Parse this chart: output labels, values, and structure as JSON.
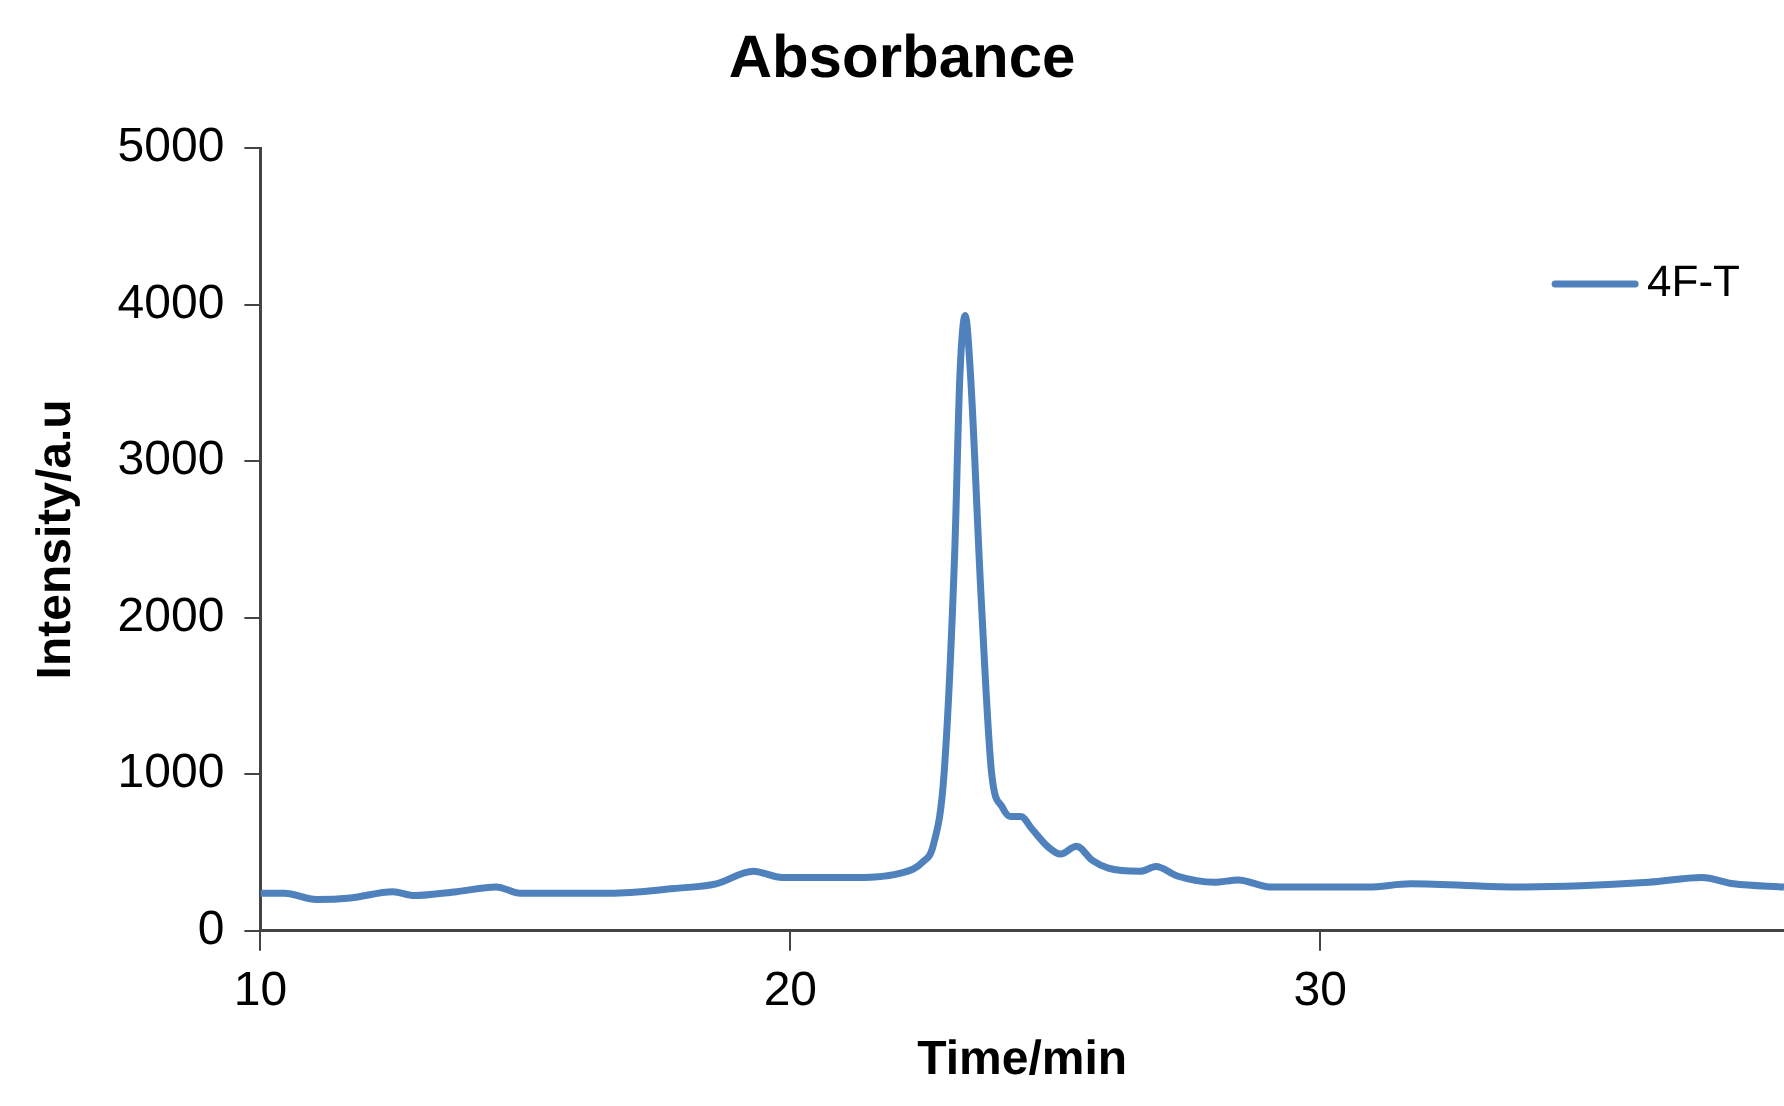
{
  "chart_data": {
    "type": "line",
    "title": "Absorbance",
    "xlabel": "Time/min",
    "ylabel": "Intensity/a.u",
    "xlim": [
      10,
      38.75
    ],
    "xticks": [
      10,
      20,
      30
    ],
    "ylim": [
      0,
      5000
    ],
    "yticks": [
      0,
      1000,
      2000,
      3000,
      4000,
      5000
    ],
    "grid": false,
    "legend": "top right",
    "marker": "none",
    "line_style": "solid",
    "series": [
      {
        "name": "4F-T",
        "color": "#4f81bd",
        "x": [
          10,
          10.45,
          11.06,
          11.7,
          12.5,
          12.9,
          13.7,
          14.45,
          14.9,
          16.6,
          17.8,
          18.6,
          19.3,
          19.85,
          21.1,
          22.1,
          22.5,
          22.7,
          22.9,
          23.1,
          23.2,
          23.3,
          23.4,
          23.6,
          23.8,
          24.0,
          24.15,
          24.35,
          24.56,
          24.85,
          25.1,
          25.4,
          25.7,
          26.0,
          26.6,
          26.9,
          27.3,
          28.0,
          28.45,
          29.05,
          30.9,
          31.7,
          33.8,
          36.2,
          37.2,
          37.8,
          38.75
        ],
        "values": [
          240,
          240,
          200,
          210,
          250,
          225,
          250,
          280,
          240,
          240,
          270,
          300,
          380,
          340,
          340,
          370,
          440,
          550,
          1000,
          2400,
          3550,
          3930,
          3550,
          2130,
          1000,
          790,
          730,
          730,
          650,
          540,
          490,
          540,
          450,
          400,
          380,
          410,
          350,
          310,
          325,
          280,
          280,
          300,
          280,
          310,
          340,
          300,
          280
        ]
      }
    ]
  }
}
